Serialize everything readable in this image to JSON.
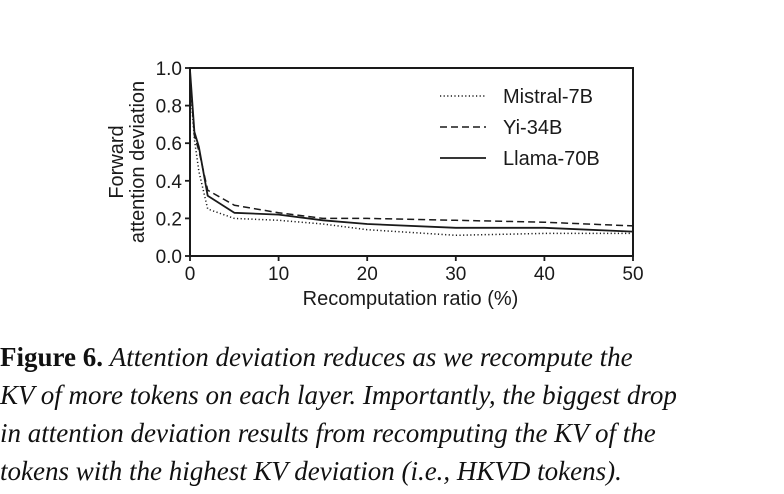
{
  "chart_data": {
    "type": "line",
    "xlabel": "Recomputation ratio (%)",
    "ylabel": [
      "Forward",
      "attention deviation"
    ],
    "xlim": [
      0,
      50
    ],
    "ylim": [
      0,
      1.0
    ],
    "x_ticks": [
      0,
      10,
      20,
      30,
      40,
      50
    ],
    "y_ticks": [
      "0.0",
      "0.2",
      "0.4",
      "0.6",
      "0.8",
      "1.0"
    ],
    "grid": false,
    "legend_position": "top-right",
    "series": [
      {
        "name": "Mistral-7B",
        "style": "dotted",
        "x": [
          0,
          0.5,
          1,
          2,
          5,
          10,
          15,
          20,
          30,
          40,
          50
        ],
        "y": [
          0.92,
          0.62,
          0.45,
          0.25,
          0.2,
          0.19,
          0.17,
          0.14,
          0.11,
          0.12,
          0.12
        ]
      },
      {
        "name": "Yi-34B",
        "style": "dashed",
        "x": [
          0,
          0.5,
          1,
          2,
          5,
          10,
          15,
          20,
          30,
          40,
          50
        ],
        "y": [
          0.95,
          0.64,
          0.56,
          0.35,
          0.27,
          0.23,
          0.2,
          0.2,
          0.19,
          0.18,
          0.16
        ]
      },
      {
        "name": "Llama-70B",
        "style": "solid",
        "x": [
          0,
          0.5,
          1,
          2,
          5,
          10,
          15,
          20,
          30,
          40,
          50
        ],
        "y": [
          0.99,
          0.66,
          0.58,
          0.32,
          0.23,
          0.22,
          0.19,
          0.17,
          0.15,
          0.15,
          0.13
        ]
      }
    ]
  },
  "caption": {
    "label": "Figure 6.",
    "lines": [
      "Attention deviation reduces as we recompute the",
      "KV of more tokens on each layer. Importantly, the biggest drop",
      "in attention deviation results from recomputing the KV of the",
      "tokens with the highest KV deviation (i.e., HKVD tokens)."
    ]
  },
  "colors": {
    "ink": "#1a1a1a"
  }
}
